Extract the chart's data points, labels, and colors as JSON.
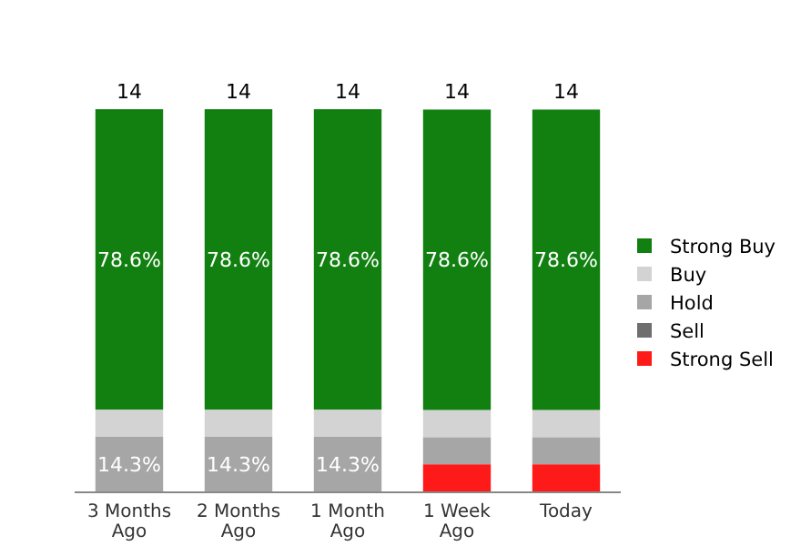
{
  "chart_data": {
    "type": "bar",
    "stacked": true,
    "categories": [
      "3 Months Ago",
      "2 Months Ago",
      "1 Month Ago",
      "1 Week Ago",
      "Today"
    ],
    "series": [
      {
        "name": "Strong Sell",
        "color": "#ff1a1a",
        "values": [
          0,
          0,
          0,
          7.1,
          7.1
        ],
        "value_labels": [
          null,
          null,
          null,
          null,
          null
        ]
      },
      {
        "name": "Sell",
        "color": "#6e6e6e",
        "values": [
          0,
          0,
          0,
          0,
          0
        ],
        "value_labels": [
          null,
          null,
          null,
          null,
          null
        ]
      },
      {
        "name": "Hold",
        "color": "#a6a6a6",
        "values": [
          14.3,
          14.3,
          14.3,
          7.1,
          7.1
        ],
        "value_labels": [
          "14.3%",
          "14.3%",
          "14.3%",
          null,
          null
        ]
      },
      {
        "name": "Buy",
        "color": "#d3d3d3",
        "values": [
          7.1,
          7.1,
          7.1,
          7.1,
          7.1
        ],
        "value_labels": [
          null,
          null,
          null,
          null,
          null
        ]
      },
      {
        "name": "Strong Buy",
        "color": "#118011",
        "values": [
          78.6,
          78.6,
          78.6,
          78.6,
          78.6
        ],
        "value_labels": [
          "78.6%",
          "78.6%",
          "78.6%",
          "78.6%",
          "78.6%"
        ]
      }
    ],
    "annotations": [
      "14",
      "14",
      "14",
      "14",
      "14"
    ],
    "legend": "right"
  }
}
